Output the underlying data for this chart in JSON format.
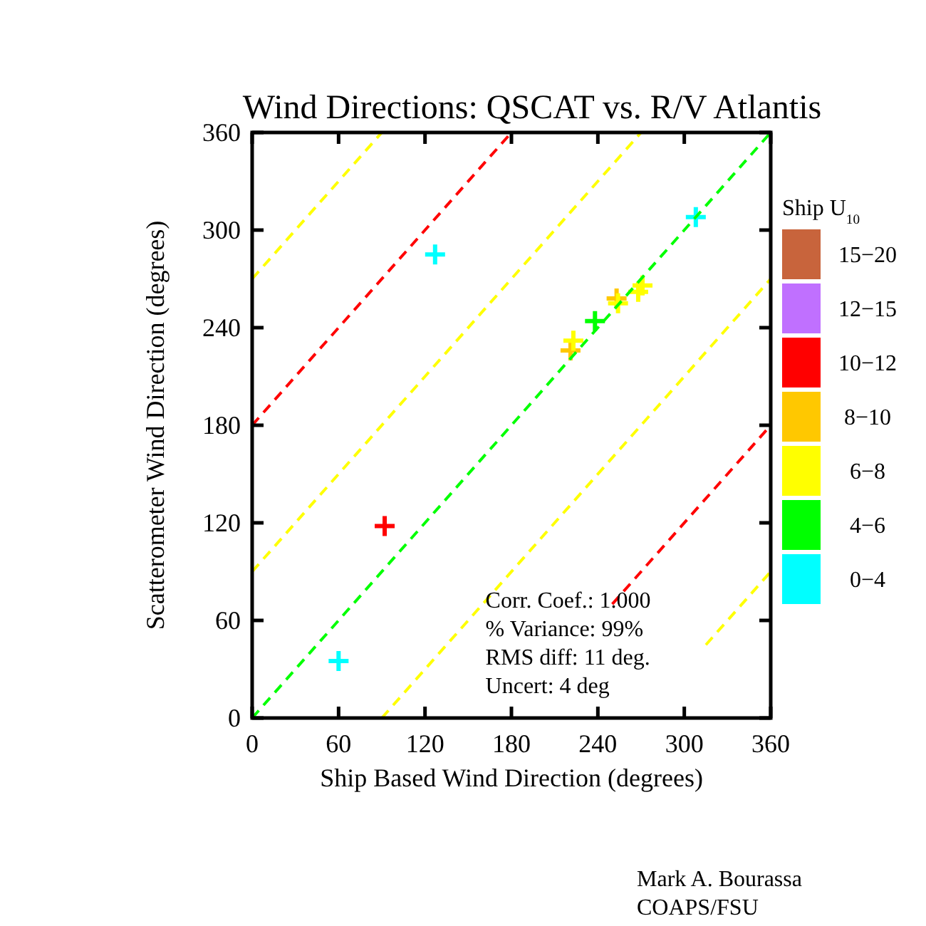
{
  "chart_data": {
    "type": "scatter",
    "title": "Wind Directions: QSCAT vs. R/V Atlantis",
    "xlabel": "Ship Based Wind Direction  (degrees)",
    "ylabel": "Scatterometer Wind Direction  (degrees)",
    "legend_title": "Ship U$_{10}$",
    "xlim": [
      0,
      360
    ],
    "ylim": [
      0,
      360
    ],
    "xticks": [
      0,
      60,
      120,
      180,
      240,
      300,
      360
    ],
    "yticks": [
      0,
      60,
      120,
      180,
      240,
      300,
      360
    ],
    "grid": false,
    "legend": "right",
    "marker": "cross",
    "series": [
      {
        "name": "15−20",
        "color": "#c8643c"
      },
      {
        "name": "12−15",
        "color": "#c070ff"
      },
      {
        "name": "10−12",
        "color": "#ff0000",
        "x": [
          92
        ],
        "values": [
          118
        ]
      },
      {
        "name": "8−10",
        "color": "#ffc800",
        "x": [
          221,
          253
        ],
        "values": [
          226,
          258
        ]
      },
      {
        "name": "6−8",
        "color": "#ffff00",
        "x": [
          223,
          254,
          268,
          271
        ],
        "values": [
          232,
          255,
          262,
          266
        ]
      },
      {
        "name": "4−6",
        "color": "#00ff00",
        "x": [
          238
        ],
        "values": [
          244
        ]
      },
      {
        "name": "0−4",
        "color": "#00ffff",
        "x": [
          60,
          127,
          308
        ],
        "values": [
          35,
          285,
          308
        ]
      },
      {
        "type": "line",
        "marker": "none",
        "line_style": "dashed",
        "color": "#ffff00",
        "x": [
          0,
          90
        ],
        "values": [
          270,
          360
        ]
      },
      {
        "type": "line",
        "marker": "none",
        "line_style": "dashed",
        "color": "#ff0000",
        "x": [
          0,
          180
        ],
        "values": [
          180,
          360
        ]
      },
      {
        "type": "line",
        "marker": "none",
        "line_style": "dashed",
        "color": "#ffff00",
        "x": [
          0,
          270
        ],
        "values": [
          90,
          360
        ]
      },
      {
        "type": "line",
        "marker": "none",
        "line_style": "dashed",
        "color": "#00ff00",
        "x": [
          0,
          360
        ],
        "values": [
          0,
          360
        ]
      },
      {
        "type": "line",
        "marker": "none",
        "line_style": "dashed",
        "color": "#ffff00",
        "x": [
          90,
          360
        ],
        "values": [
          0,
          270
        ]
      },
      {
        "type": "line",
        "marker": "none",
        "line_style": "dashed",
        "color": "#ff0000",
        "x": [
          250,
          360
        ],
        "values": [
          70,
          180
        ]
      },
      {
        "type": "line",
        "marker": "none",
        "line_style": "dashed",
        "color": "#ffff00",
        "x": [
          315,
          360
        ],
        "values": [
          45,
          90
        ]
      }
    ],
    "annotations": [
      "Corr. Coef.: 1.000",
      "% Variance:  99%",
      "RMS diff: 11 deg.",
      "Uncert:  4 deg",
      "Mark A. Bourassa",
      "COAPS/FSU"
    ]
  }
}
